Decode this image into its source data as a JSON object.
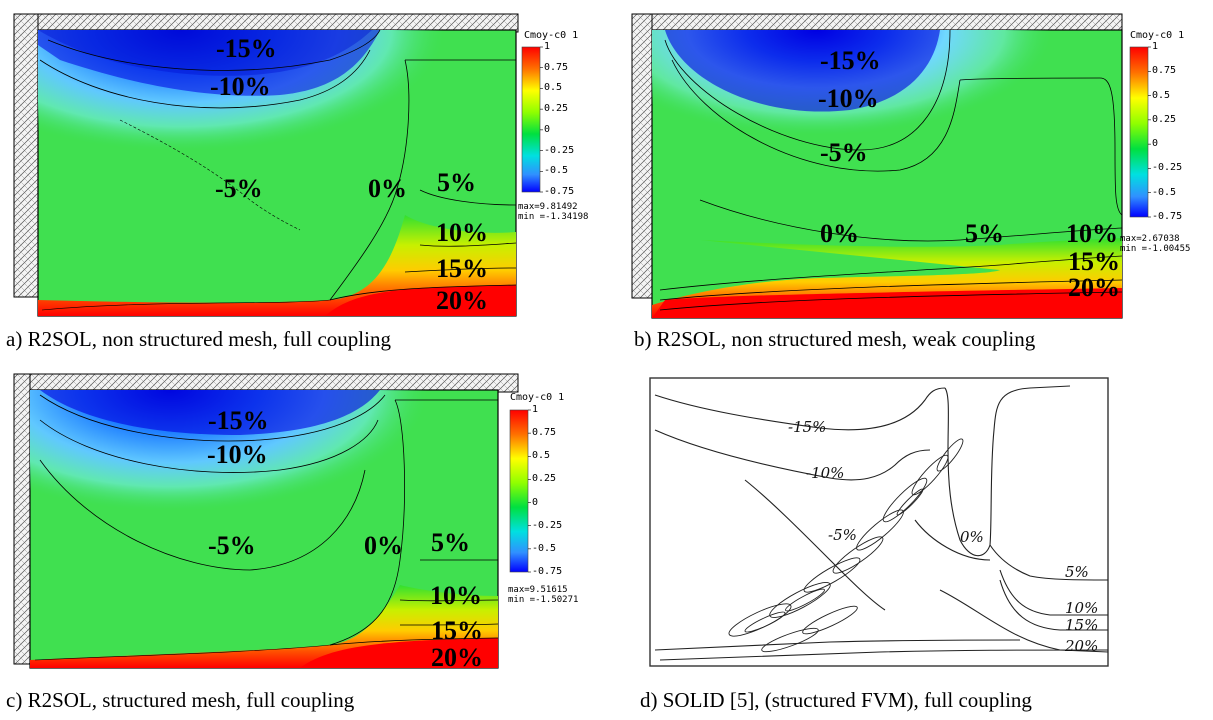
{
  "colorbar": {
    "title": "Cmoy-c0  1",
    "ticks": [
      "1",
      "0.75",
      "0.5",
      "0.25",
      "0",
      "-0.25",
      "-0.5",
      "-0.75"
    ],
    "colors": [
      "#ff0000",
      "#ff8a00",
      "#ffff00",
      "#88ff00",
      "#00e640",
      "#00e0e0",
      "#33a0ff",
      "#0000ff"
    ]
  },
  "panels": [
    {
      "id": "a",
      "caption": "a) R2SOL, non structured mesh, full coupling",
      "max": "max=9.81492",
      "min": "min =-1.34198",
      "labels": [
        "-15%",
        "-10%",
        "-5%",
        "0%",
        "5%",
        "10%",
        "15%",
        "20%"
      ]
    },
    {
      "id": "b",
      "caption": "b) R2SOL, non structured mesh, weak coupling",
      "max": "max=2.67038",
      "min": "min =-1.00455",
      "labels": [
        "-15%",
        "-10%",
        "-5%",
        "0%",
        "5%",
        "10%",
        "15%",
        "20%"
      ]
    },
    {
      "id": "c",
      "caption": "c) R2SOL, structured mesh, full coupling",
      "max": "max=9.51615",
      "min": "min =-1.50271",
      "labels": [
        "-15%",
        "-10%",
        "-5%",
        "0%",
        "5%",
        "10%",
        "15%",
        "20%"
      ]
    },
    {
      "id": "d",
      "caption": "d) SOLID [5], (structured FVM), full coupling",
      "labels": [
        "-15%",
        "-10%",
        "-5%",
        "0%",
        "5%",
        "10%",
        "15%",
        "20%"
      ]
    }
  ]
}
